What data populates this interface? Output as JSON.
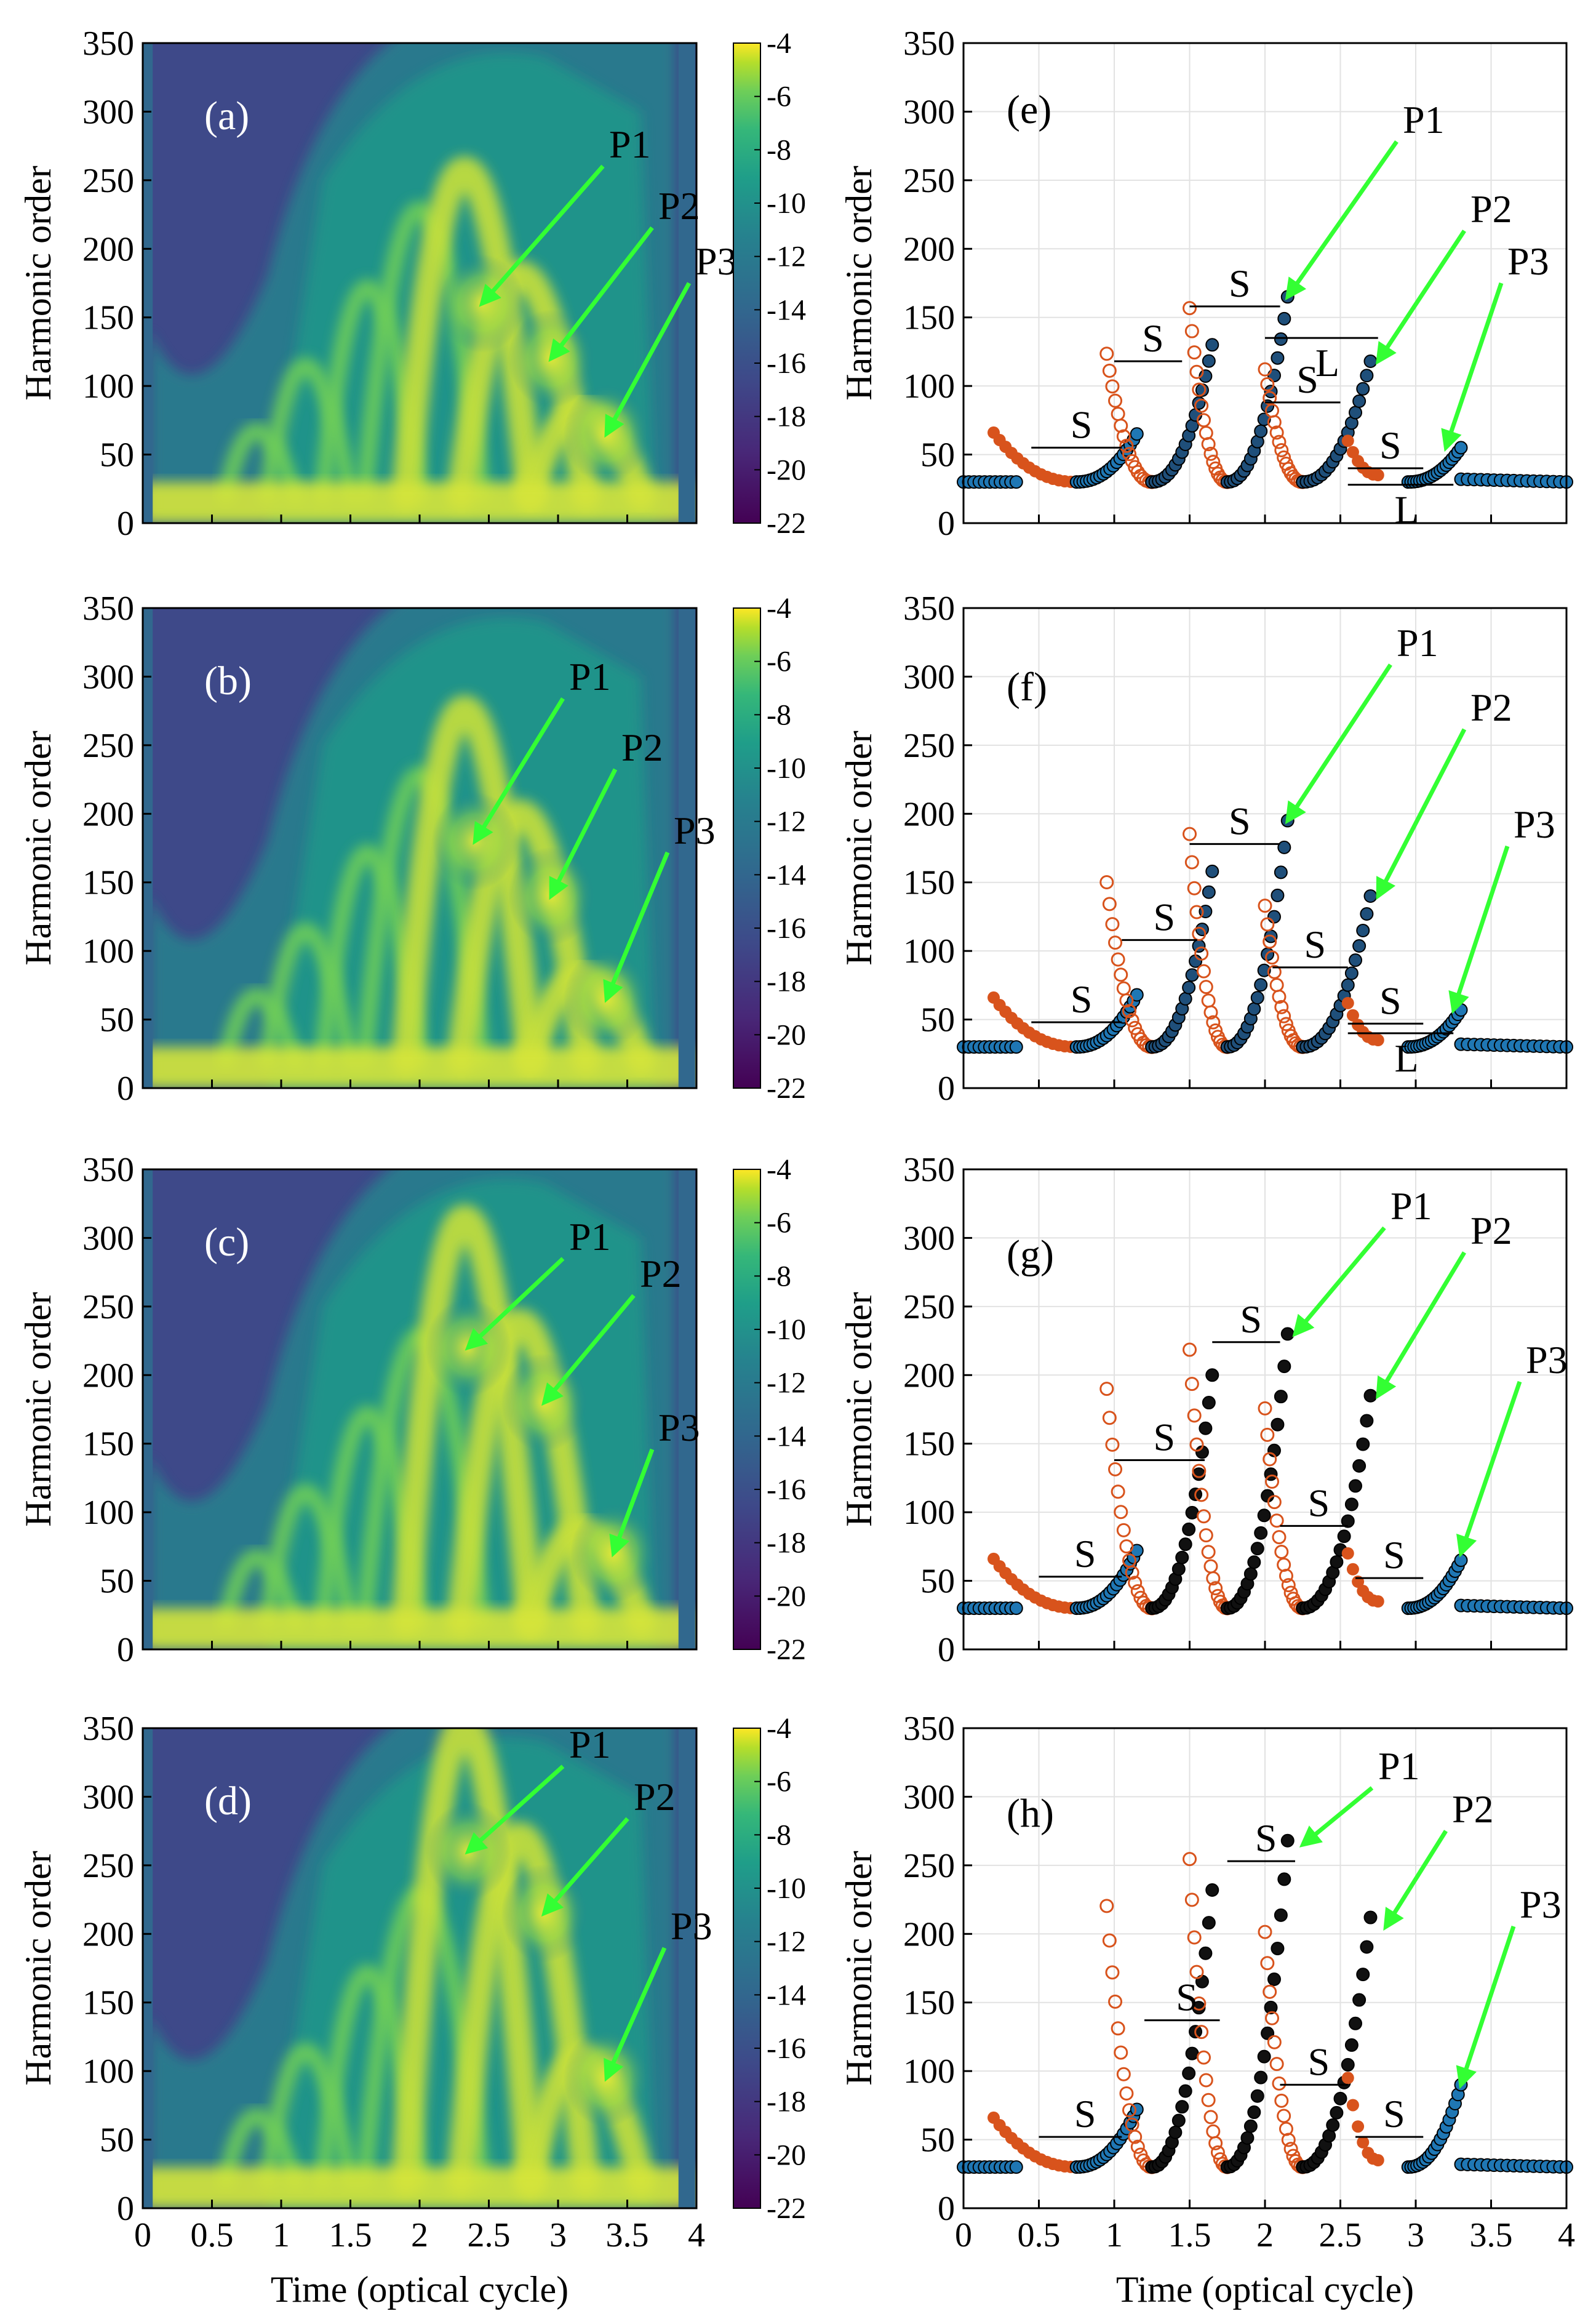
{
  "figure": {
    "ylabel": "Harmonic order",
    "xlabel": "Time (optical cycle)"
  },
  "chart_data": [
    {
      "type": "heatmap",
      "panel": "(a)",
      "xlim": [
        0,
        4
      ],
      "ylim": [
        0,
        350
      ],
      "xticks": [
        "0",
        "0.5",
        "1",
        "1.5",
        "2",
        "2.5",
        "3",
        "3.5",
        "4"
      ],
      "yticks": [
        "0",
        "50",
        "100",
        "150",
        "200",
        "250",
        "300",
        "350"
      ],
      "colorbar": {
        "range": [
          -22,
          -4
        ],
        "ticks": [
          "-4",
          "-6",
          "-8",
          "-10",
          "-12",
          "-14",
          "-16",
          "-18",
          "-20",
          "-22"
        ]
      },
      "peaks": [
        {
          "label": "P1",
          "x": 2.45,
          "y": 160
        },
        {
          "label": "P2",
          "x": 2.95,
          "y": 120
        },
        {
          "label": "P3",
          "x": 3.35,
          "y": 65
        }
      ]
    },
    {
      "type": "heatmap",
      "panel": "(b)",
      "xlim": [
        0,
        4
      ],
      "ylim": [
        0,
        350
      ],
      "xticks": [
        "0",
        "0.5",
        "1",
        "1.5",
        "2",
        "2.5",
        "3",
        "3.5",
        "4"
      ],
      "yticks": [
        "0",
        "50",
        "100",
        "150",
        "200",
        "250",
        "300",
        "350"
      ],
      "colorbar": {
        "range": [
          -22,
          -4
        ],
        "ticks": [
          "-4",
          "-6",
          "-8",
          "-10",
          "-12",
          "-14",
          "-16",
          "-18",
          "-20",
          "-22"
        ]
      },
      "peaks": [
        {
          "label": "P1",
          "x": 2.4,
          "y": 180
        },
        {
          "label": "P2",
          "x": 2.95,
          "y": 140
        },
        {
          "label": "P3",
          "x": 3.35,
          "y": 65
        }
      ]
    },
    {
      "type": "heatmap",
      "panel": "(c)",
      "xlim": [
        0,
        4
      ],
      "ylim": [
        0,
        350
      ],
      "xticks": [
        "0",
        "0.5",
        "1",
        "1.5",
        "2",
        "2.5",
        "3",
        "3.5",
        "4"
      ],
      "yticks": [
        "0",
        "50",
        "100",
        "150",
        "200",
        "250",
        "300",
        "350"
      ],
      "colorbar": {
        "range": [
          -22,
          -4
        ],
        "ticks": [
          "-4",
          "-6",
          "-8",
          "-10",
          "-12",
          "-14",
          "-16",
          "-18",
          "-20",
          "-22"
        ]
      },
      "peaks": [
        {
          "label": "P1",
          "x": 2.35,
          "y": 220
        },
        {
          "label": "P2",
          "x": 2.9,
          "y": 180
        },
        {
          "label": "P3",
          "x": 3.4,
          "y": 70
        }
      ]
    },
    {
      "type": "heatmap",
      "panel": "(d)",
      "xlim": [
        0,
        4
      ],
      "ylim": [
        0,
        350
      ],
      "xticks": [
        "0",
        "0.5",
        "1",
        "1.5",
        "2",
        "2.5",
        "3",
        "3.5",
        "4"
      ],
      "yticks": [
        "0",
        "50",
        "100",
        "150",
        "200",
        "250",
        "300",
        "350"
      ],
      "colorbar": {
        "range": [
          -22,
          -4
        ],
        "ticks": [
          "-4",
          "-6",
          "-8",
          "-10",
          "-12",
          "-14",
          "-16",
          "-18",
          "-20",
          "-22"
        ]
      },
      "peaks": [
        {
          "label": "P1",
          "x": 2.35,
          "y": 260
        },
        {
          "label": "P2",
          "x": 2.9,
          "y": 215
        },
        {
          "label": "P3",
          "x": 3.35,
          "y": 95
        }
      ]
    },
    {
      "type": "scatter",
      "panel": "(e)",
      "xlim": [
        0,
        4
      ],
      "ylim": [
        0,
        350
      ],
      "xticks": [
        "0",
        "0.5",
        "1",
        "1.5",
        "2",
        "2.5",
        "3",
        "3.5",
        "4"
      ],
      "yticks": [
        "0",
        "50",
        "100",
        "150",
        "200",
        "250",
        "300",
        "350"
      ],
      "series": [
        {
          "color": "#d8531c"
        },
        {
          "color": "#1f77b4"
        }
      ],
      "peaks": [
        65,
        130,
        165,
        118,
        55
      ],
      "tip": [
        2.15,
        2.7,
        3.25
      ],
      "brackets": [
        {
          "label": "S",
          "x1": 0.45,
          "x2": 1.05,
          "y": 55
        },
        {
          "label": "S",
          "x1": 1.0,
          "x2": 1.45,
          "y": 118
        },
        {
          "label": "S",
          "x1": 1.5,
          "x2": 2.1,
          "y": 158
        },
        {
          "label": "S",
          "x1": 2.0,
          "x2": 2.5,
          "y": 88
        },
        {
          "label": "S",
          "x1": 2.55,
          "x2": 3.05,
          "y": 40
        },
        {
          "label": "L",
          "x1": 2.0,
          "x2": 2.75,
          "y": 135
        },
        {
          "label": "L",
          "x1": 2.55,
          "x2": 3.25,
          "y": 28
        }
      ],
      "arrows": [
        {
          "label": "P1",
          "x": 2.15,
          "y": 165
        },
        {
          "label": "P2",
          "x": 2.75,
          "y": 118
        },
        {
          "label": "P3",
          "x": 3.2,
          "y": 55
        }
      ]
    },
    {
      "type": "scatter",
      "panel": "(f)",
      "xlim": [
        0,
        4
      ],
      "ylim": [
        0,
        350
      ],
      "xticks": [
        "0",
        "0.5",
        "1",
        "1.5",
        "2",
        "2.5",
        "3",
        "3.5",
        "4"
      ],
      "yticks": [
        "0",
        "50",
        "100",
        "150",
        "200",
        "250",
        "300",
        "350"
      ],
      "series": [
        {
          "color": "#d8531c"
        },
        {
          "color": "#1f77b4"
        }
      ],
      "peaks": [
        68,
        158,
        195,
        140,
        57
      ],
      "tip": [
        2.15,
        2.7,
        3.25
      ],
      "brackets": [
        {
          "label": "S",
          "x1": 0.45,
          "x2": 1.05,
          "y": 48
        },
        {
          "label": "S",
          "x1": 1.05,
          "x2": 1.55,
          "y": 108
        },
        {
          "label": "S",
          "x1": 1.5,
          "x2": 2.1,
          "y": 178
        },
        {
          "label": "S",
          "x1": 2.05,
          "x2": 2.55,
          "y": 88
        },
        {
          "label": "S",
          "x1": 2.55,
          "x2": 3.05,
          "y": 47
        },
        {
          "label": "L",
          "x1": 2.55,
          "x2": 3.25,
          "y": 40
        }
      ],
      "arrows": [
        {
          "label": "P1",
          "x": 2.15,
          "y": 195
        },
        {
          "label": "P2",
          "x": 2.75,
          "y": 140
        },
        {
          "label": "P3",
          "x": 3.25,
          "y": 57
        }
      ]
    },
    {
      "type": "scatter",
      "panel": "(g)",
      "xlim": [
        0,
        4
      ],
      "ylim": [
        0,
        350
      ],
      "xticks": [
        "0",
        "0.5",
        "1",
        "1.5",
        "2",
        "2.5",
        "3",
        "3.5",
        "4"
      ],
      "yticks": [
        "0",
        "50",
        "100",
        "150",
        "200",
        "250",
        "300",
        "350"
      ],
      "series": [
        {
          "color": "#d8531c"
        },
        {
          "color": "#000000"
        }
      ],
      "peaks": [
        72,
        200,
        230,
        185,
        65
      ],
      "tip": [
        2.15,
        2.7,
        3.3
      ],
      "brackets": [
        {
          "label": "S",
          "x1": 0.5,
          "x2": 1.05,
          "y": 53
        },
        {
          "label": "S",
          "x1": 1.0,
          "x2": 1.6,
          "y": 138
        },
        {
          "label": "S",
          "x1": 1.65,
          "x2": 2.1,
          "y": 224
        },
        {
          "label": "S",
          "x1": 2.1,
          "x2": 2.55,
          "y": 90
        },
        {
          "label": "S",
          "x1": 2.6,
          "x2": 3.05,
          "y": 52
        }
      ],
      "arrows": [
        {
          "label": "P1",
          "x": 2.2,
          "y": 230
        },
        {
          "label": "P2",
          "x": 2.75,
          "y": 185
        },
        {
          "label": "P3",
          "x": 3.3,
          "y": 70
        }
      ]
    },
    {
      "type": "scatter",
      "panel": "(h)",
      "xlim": [
        0,
        4
      ],
      "ylim": [
        0,
        350
      ],
      "xticks": [
        "0",
        "0.5",
        "1",
        "1.5",
        "2",
        "2.5",
        "3",
        "3.5",
        "4"
      ],
      "yticks": [
        "0",
        "50",
        "100",
        "150",
        "200",
        "250",
        "300",
        "350"
      ],
      "series": [
        {
          "color": "#d8531c"
        },
        {
          "color": "#000000"
        }
      ],
      "peaks": [
        72,
        232,
        268,
        212,
        90
      ],
      "tip": [
        2.2,
        2.75,
        3.3
      ],
      "brackets": [
        {
          "label": "S",
          "x1": 0.5,
          "x2": 1.05,
          "y": 52
        },
        {
          "label": "S",
          "x1": 1.2,
          "x2": 1.7,
          "y": 137
        },
        {
          "label": "S",
          "x1": 1.75,
          "x2": 2.2,
          "y": 253
        },
        {
          "label": "S",
          "x1": 2.1,
          "x2": 2.55,
          "y": 90
        },
        {
          "label": "S",
          "x1": 2.6,
          "x2": 3.05,
          "y": 52
        }
      ],
      "arrows": [
        {
          "label": "P1",
          "x": 2.25,
          "y": 265
        },
        {
          "label": "P2",
          "x": 2.8,
          "y": 205
        },
        {
          "label": "P3",
          "x": 3.3,
          "y": 90
        }
      ]
    }
  ]
}
